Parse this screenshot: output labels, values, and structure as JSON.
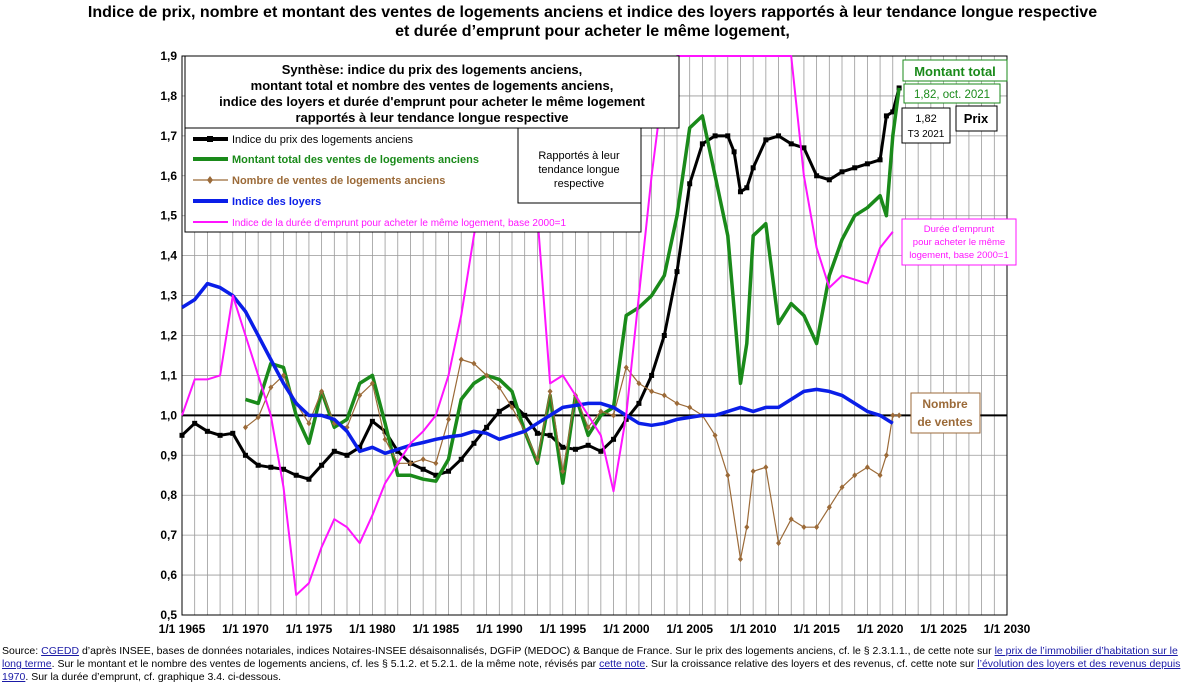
{
  "title": {
    "line1": "Indice de prix, nombre et montant des ventes de logements anciens et indice des loyers rapportés à leur tendance longue respective",
    "line2": "et durée d’emprunt pour acheter le même logement,"
  },
  "colors": {
    "price": "#000000",
    "amount": "#1a8a1a",
    "count": "#9b6a38",
    "rent": "#0a1ee8",
    "duration": "#ff14ff",
    "grid": "#999999"
  },
  "chart_data": {
    "type": "line",
    "xlim": [
      1965,
      2030
    ],
    "ylim": [
      0.5,
      1.9
    ],
    "x_ticks": [
      1965,
      1970,
      1975,
      1980,
      1985,
      1990,
      1995,
      2000,
      2005,
      2010,
      2015,
      2020,
      2025,
      2030
    ],
    "x_tick_labels": [
      "1/1 1965",
      "1/1 1970",
      "1/1 1975",
      "1/1 1980",
      "1/1 1985",
      "1/1 1990",
      "1/1 1995",
      "1/1 2000",
      "1/1 2005",
      "1/1 2010",
      "1/1 2015",
      "1/1 2020",
      "1/1 2025",
      "1/1 2030"
    ],
    "y_ticks": [
      0.5,
      0.6,
      0.7,
      0.8,
      0.9,
      1.0,
      1.1,
      1.2,
      1.3,
      1.4,
      1.5,
      1.6,
      1.7,
      1.8,
      1.9
    ],
    "y_tick_labels": [
      "0,5",
      "0,6",
      "0,7",
      "0,8",
      "0,9",
      "1,0",
      "1,1",
      "1,2",
      "1,3",
      "1,4",
      "1,5",
      "1,6",
      "1,7",
      "1,8",
      "1,9"
    ],
    "grid": true,
    "reference_line": 1.0,
    "series": [
      {
        "name": "Indice du prix des logements anciens",
        "key": "price",
        "x": [
          1965,
          1966,
          1967,
          1968,
          1969,
          1970,
          1971,
          1972,
          1973,
          1974,
          1975,
          1976,
          1977,
          1978,
          1979,
          1980,
          1981,
          1982,
          1983,
          1984,
          1985,
          1986,
          1987,
          1988,
          1989,
          1990,
          1991,
          1992,
          1993,
          1994,
          1995,
          1996,
          1997,
          1998,
          1999,
          2000,
          2001,
          2002,
          2003,
          2004,
          2005,
          2006,
          2007,
          2008,
          2008.5,
          2009,
          2009.5,
          2010,
          2011,
          2012,
          2013,
          2014,
          2015,
          2016,
          2017,
          2018,
          2019,
          2020,
          2020.5,
          2021,
          2021.5
        ],
        "values": [
          0.95,
          0.98,
          0.96,
          0.95,
          0.955,
          0.9,
          0.875,
          0.87,
          0.865,
          0.85,
          0.84,
          0.875,
          0.91,
          0.9,
          0.92,
          0.985,
          0.96,
          0.91,
          0.88,
          0.865,
          0.85,
          0.86,
          0.89,
          0.93,
          0.97,
          1.01,
          1.03,
          1.0,
          0.955,
          0.95,
          0.92,
          0.915,
          0.925,
          0.91,
          0.94,
          0.99,
          1.03,
          1.1,
          1.2,
          1.36,
          1.58,
          1.68,
          1.7,
          1.7,
          1.66,
          1.56,
          1.57,
          1.62,
          1.69,
          1.7,
          1.68,
          1.67,
          1.6,
          1.59,
          1.61,
          1.62,
          1.63,
          1.64,
          1.75,
          1.76,
          1.82
        ]
      },
      {
        "name": "Montant total des ventes de logements anciens",
        "key": "amount",
        "x": [
          1970,
          1971,
          1972,
          1973,
          1974,
          1975,
          1976,
          1977,
          1978,
          1979,
          1980,
          1981,
          1982,
          1983,
          1984,
          1985,
          1986,
          1987,
          1988,
          1989,
          1990,
          1991,
          1992,
          1993,
          1994,
          1995,
          1996,
          1997,
          1998,
          1999,
          2000,
          2001,
          2002,
          2003,
          2004,
          2005,
          2006,
          2007,
          2008,
          2009,
          2009.5,
          2010,
          2011,
          2012,
          2013,
          2014,
          2015,
          2016,
          2017,
          2018,
          2019,
          2020,
          2020.5,
          2021,
          2021.5
        ],
        "values": [
          1.04,
          1.03,
          1.13,
          1.12,
          1.0,
          0.93,
          1.06,
          0.97,
          0.99,
          1.08,
          1.1,
          0.98,
          0.85,
          0.85,
          0.84,
          0.835,
          0.89,
          1.04,
          1.08,
          1.1,
          1.09,
          1.06,
          0.96,
          0.88,
          1.05,
          0.83,
          1.05,
          0.95,
          1.0,
          1.02,
          1.25,
          1.27,
          1.3,
          1.35,
          1.5,
          1.72,
          1.75,
          1.6,
          1.45,
          1.08,
          1.18,
          1.45,
          1.48,
          1.23,
          1.28,
          1.25,
          1.18,
          1.35,
          1.44,
          1.5,
          1.52,
          1.55,
          1.5,
          1.7,
          1.82
        ]
      },
      {
        "name": "Nombre de ventes de logements anciens",
        "key": "count",
        "x": [
          1970,
          1971,
          1972,
          1973,
          1974,
          1975,
          1976,
          1977,
          1978,
          1979,
          1980,
          1981,
          1982,
          1983,
          1984,
          1985,
          1986,
          1987,
          1988,
          1989,
          1990,
          1991,
          1992,
          1993,
          1994,
          1995,
          1996,
          1997,
          1998,
          1999,
          2000,
          2001,
          2002,
          2003,
          2004,
          2005,
          2006,
          2007,
          2008,
          2009,
          2009.5,
          2010,
          2011,
          2012,
          2013,
          2014,
          2015,
          2016,
          2017,
          2018,
          2019,
          2020,
          2020.5,
          2021,
          2021.5
        ],
        "values": [
          0.97,
          0.995,
          1.07,
          1.1,
          1.03,
          0.98,
          1.06,
          0.98,
          0.97,
          1.05,
          1.08,
          0.94,
          0.88,
          0.88,
          0.89,
          0.88,
          0.99,
          1.14,
          1.13,
          1.1,
          1.07,
          1.02,
          0.96,
          0.89,
          1.06,
          0.86,
          1.05,
          0.97,
          1.01,
          1.0,
          1.12,
          1.08,
          1.06,
          1.05,
          1.03,
          1.02,
          1.0,
          0.95,
          0.85,
          0.64,
          0.72,
          0.86,
          0.87,
          0.68,
          0.74,
          0.72,
          0.72,
          0.77,
          0.82,
          0.85,
          0.87,
          0.85,
          0.9,
          1.0,
          1.0
        ]
      },
      {
        "name": "Indice des loyers",
        "key": "rent",
        "x": [
          1965,
          1966,
          1967,
          1968,
          1969,
          1970,
          1971,
          1972,
          1973,
          1974,
          1975,
          1976,
          1977,
          1978,
          1979,
          1980,
          1981,
          1982,
          1983,
          1984,
          1985,
          1986,
          1987,
          1988,
          1989,
          1990,
          1991,
          1992,
          1993,
          1994,
          1995,
          1996,
          1997,
          1998,
          1999,
          2000,
          2001,
          2002,
          2003,
          2004,
          2005,
          2006,
          2007,
          2008,
          2009,
          2010,
          2011,
          2012,
          2013,
          2014,
          2015,
          2016,
          2017,
          2018,
          2019,
          2020,
          2021
        ],
        "values": [
          1.27,
          1.29,
          1.33,
          1.32,
          1.3,
          1.26,
          1.2,
          1.14,
          1.08,
          1.03,
          1.0,
          1.0,
          0.99,
          0.96,
          0.91,
          0.92,
          0.905,
          0.915,
          0.925,
          0.932,
          0.94,
          0.946,
          0.95,
          0.96,
          0.955,
          0.94,
          0.95,
          0.96,
          0.98,
          1.0,
          1.02,
          1.025,
          1.03,
          1.03,
          1.02,
          1.0,
          0.98,
          0.975,
          0.98,
          0.99,
          0.995,
          1.0,
          1.0,
          1.01,
          1.02,
          1.01,
          1.02,
          1.02,
          1.04,
          1.06,
          1.065,
          1.06,
          1.05,
          1.03,
          1.01,
          1.0,
          0.98
        ]
      },
      {
        "name": "Indice de la durée d’emprunt pour acheter le même logement, base 2000=1",
        "key": "duration",
        "x": [
          1965,
          1966,
          1967,
          1968,
          1969,
          1970,
          1971,
          1972,
          1973,
          1974,
          1975,
          1976,
          1977,
          1978,
          1979,
          1980,
          1981,
          1982,
          1983,
          1984,
          1985,
          1986,
          1987,
          1988,
          1989,
          1990,
          1991,
          1992,
          1993,
          1994,
          1995,
          1996,
          1997,
          1998,
          1999,
          2000,
          2001,
          2002,
          2003,
          2004,
          2005,
          2006,
          2007,
          2008,
          2009,
          2010,
          2011,
          2012,
          2013,
          2014,
          2015,
          2016,
          2017,
          2018,
          2019,
          2020,
          2021
        ],
        "values": [
          1.0,
          1.09,
          1.09,
          1.1,
          1.3,
          1.2,
          1.1,
          1.0,
          0.82,
          0.55,
          0.58,
          0.67,
          0.74,
          0.72,
          0.68,
          0.75,
          0.83,
          0.88,
          0.93,
          0.96,
          1.0,
          1.1,
          1.25,
          1.45,
          1.62,
          1.68,
          1.7,
          1.55,
          1.5,
          1.08,
          1.1,
          1.05,
          1.0,
          0.95,
          0.81,
          1.0,
          1.3,
          1.6,
          1.85,
          1.92,
          1.92,
          1.92,
          1.92,
          1.92,
          1.92,
          1.92,
          1.92,
          1.92,
          1.9,
          1.6,
          1.42,
          1.32,
          1.35,
          1.34,
          1.33,
          1.42,
          1.46
        ]
      }
    ],
    "legend": {
      "placement": "top-left",
      "entries": [
        "Indice du prix des logements anciens",
        "Montant total des ventes de logements anciens",
        "Nombre de ventes de logements anciens",
        "Indice des loyers",
        "Indice de la durée d'emprunt pour acheter le même logement, base 2000=1"
      ]
    }
  },
  "boxes": {
    "synthese": [
      "Synthèse: indice du prix des logements anciens,",
      "montant total et nombre des ventes de logements anciens,",
      "indice des loyers et durée d'emprunt pour acheter le même logement",
      "rapportés à leur tendance longue respective"
    ],
    "rapportes": [
      "Rapportés  à leur",
      "tendance longue",
      "respective"
    ]
  },
  "annotations": {
    "montant_total": "Montant total",
    "montant_value": "1,82, oct. 2021",
    "prix_value_line1": "1,82",
    "prix_value_line2": "T3 2021",
    "prix_label": "Prix",
    "duree_lines": [
      "Durée d'emprunt",
      "pour acheter le même",
      "logement, base 2000=1"
    ],
    "nombre_lines": [
      "Nombre",
      "de ventes"
    ]
  },
  "source": {
    "p1": "Source: ",
    "l1": "CGEDD",
    "p2": " d’après INSEE, bases de données notariales, indices Notaires-INSEE désaisonnalisés, DGFiP (MEDOC) & Banque de France.  Sur le prix des logements anciens, cf. le §  2.3.1.1., de cette note sur ",
    "l2": "le prix de l’immobilier d’habitation sur le long terme",
    "p3": ".  Sur le montant et le nombre des ventes de logements anciens, cf. les § 5.1.2. et 5.2.1. de la même note, révisés par ",
    "l3": "cette note",
    "p4": ".  Sur la croissance relative des loyers et des revenus, cf. cette note sur ",
    "l4": "l’évolution des loyers et des revenus depuis 1970",
    "p5": ".  Sur la durée d’emprunt, cf. graphique 3.4. ci-dessous."
  }
}
